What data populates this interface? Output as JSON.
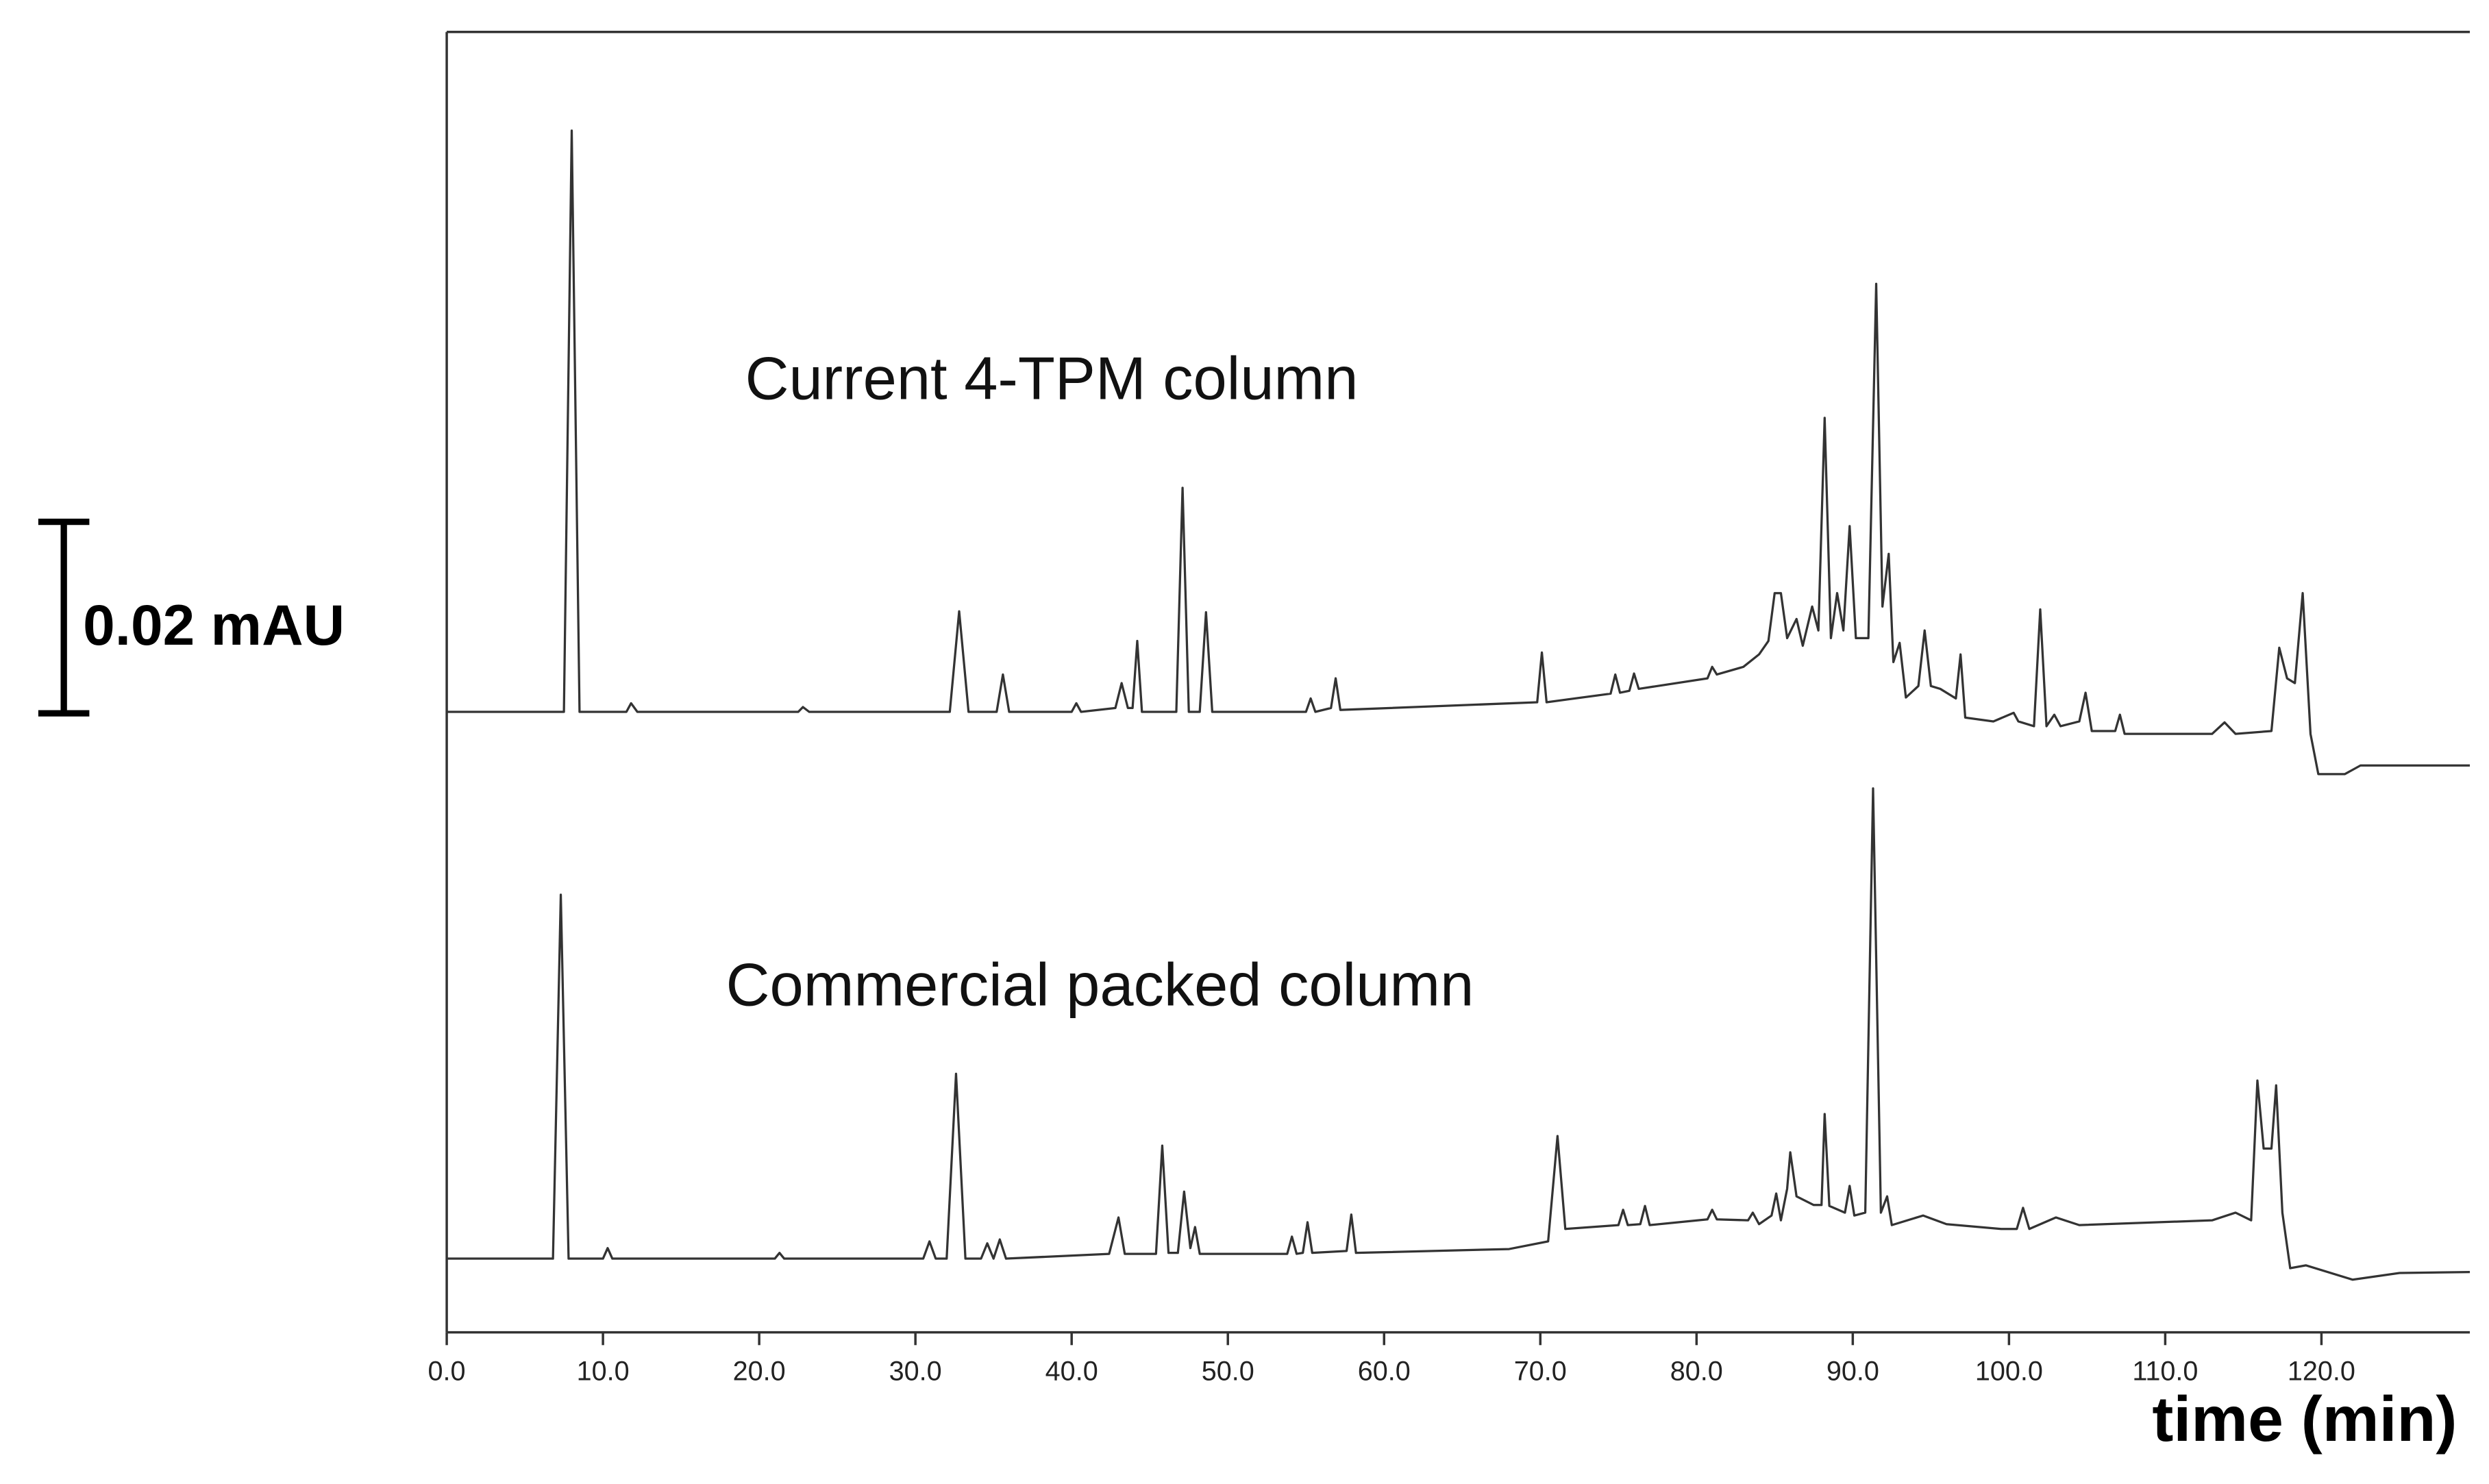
{
  "chart_data": {
    "type": "line",
    "xlabel": "time (min)",
    "xlim": [
      0,
      129.5
    ],
    "ylim": [
      0,
      0.1358
    ],
    "xticks": [
      {
        "value": 0,
        "label": "0.0"
      },
      {
        "value": 10,
        "label": "10.0"
      },
      {
        "value": 20,
        "label": "20.0"
      },
      {
        "value": 30,
        "label": "30.0"
      },
      {
        "value": 40,
        "label": "40.0"
      },
      {
        "value": 50,
        "label": "50.0"
      },
      {
        "value": 60,
        "label": "60.0"
      },
      {
        "value": 70,
        "label": "70.0"
      },
      {
        "value": 80,
        "label": "80.0"
      },
      {
        "value": 90,
        "label": "90.0"
      },
      {
        "value": 100,
        "label": "100.0"
      },
      {
        "value": 110,
        "label": "110.0"
      },
      {
        "value": 120,
        "label": "120.0"
      }
    ],
    "scale_bar": {
      "value": 0.02,
      "label": "0.02 mAU"
    },
    "series": [
      {
        "name": "Current 4-TPM column",
        "color": "#333333",
        "x": [
          0,
          7.5,
          8.0,
          8.5,
          11.5,
          11.8,
          12.2,
          22.5,
          22.8,
          23.2,
          32.2,
          32.8,
          33.4,
          35.2,
          35.6,
          36.0,
          40.0,
          40.3,
          40.6,
          42.8,
          43.2,
          43.6,
          43.9,
          44.2,
          44.5,
          46.7,
          47.1,
          47.5,
          48.2,
          48.6,
          49.0,
          55,
          55.3,
          55.6,
          56.6,
          56.9,
          57.2,
          69.8,
          70.1,
          70.4,
          74.5,
          74.8,
          75.1,
          75.7,
          76.0,
          76.3,
          80.7,
          81.0,
          81.3,
          83,
          84,
          84.6,
          85.0,
          85.4,
          85.8,
          86.4,
          86.8,
          87.4,
          87.8,
          88.2,
          88.6,
          89.0,
          89.4,
          89.8,
          90.2,
          91.0,
          91.5,
          91.9,
          92.3,
          92.6,
          93.0,
          93.4,
          94.2,
          94.6,
          95.0,
          95.6,
          96.6,
          96.9,
          97.2,
          99,
          100.3,
          100.6,
          101.6,
          102.0,
          102.4,
          102.9,
          103.3,
          104.5,
          104.9,
          105.3,
          106.8,
          107.1,
          107.4,
          113,
          113.8,
          114.5,
          116.8,
          117.3,
          117.8,
          118.3,
          118.8,
          119.3,
          119.8,
          121.5,
          122.5,
          129.5
        ],
        "values": [
          0.0648,
          0.0648,
          0.1255,
          0.0648,
          0.0648,
          0.0657,
          0.0648,
          0.0648,
          0.0653,
          0.0648,
          0.0648,
          0.0753,
          0.0648,
          0.0648,
          0.0687,
          0.0648,
          0.0648,
          0.0657,
          0.0648,
          0.0652,
          0.0678,
          0.0652,
          0.0652,
          0.0722,
          0.0648,
          0.0648,
          0.0882,
          0.0648,
          0.0648,
          0.0752,
          0.0648,
          0.0648,
          0.0662,
          0.0648,
          0.0652,
          0.0683,
          0.065,
          0.0658,
          0.071,
          0.0658,
          0.0667,
          0.0687,
          0.0668,
          0.067,
          0.0688,
          0.0672,
          0.0683,
          0.0695,
          0.0687,
          0.0695,
          0.0708,
          0.0722,
          0.0772,
          0.0772,
          0.0725,
          0.0745,
          0.0717,
          0.0758,
          0.0733,
          0.0955,
          0.0725,
          0.0772,
          0.0733,
          0.0842,
          0.0725,
          0.0725,
          0.1095,
          0.0758,
          0.0813,
          0.07,
          0.072,
          0.0663,
          0.0675,
          0.0733,
          0.0675,
          0.0672,
          0.0662,
          0.0708,
          0.0642,
          0.0638,
          0.0647,
          0.0638,
          0.0633,
          0.0755,
          0.0633,
          0.0645,
          0.0633,
          0.0638,
          0.0668,
          0.0628,
          0.0628,
          0.0645,
          0.0625,
          0.0625,
          0.0637,
          0.0625,
          0.0628,
          0.0715,
          0.0683,
          0.0678,
          0.0772,
          0.0625,
          0.0583,
          0.0583,
          0.0592,
          0.0592
        ]
      },
      {
        "name": "Commercial packed column",
        "color": "#333333",
        "x": [
          0,
          6.8,
          7.3,
          7.8,
          10.0,
          10.3,
          10.6,
          21,
          21.3,
          21.6,
          30.5,
          30.9,
          31.3,
          32.0,
          32.6,
          33.2,
          34.2,
          34.6,
          35.0,
          35.4,
          35.8,
          42.4,
          43.0,
          43.4,
          45.4,
          45.8,
          46.2,
          46.8,
          47.2,
          47.6,
          47.9,
          48.2,
          53.8,
          54.1,
          54.4,
          54.8,
          55.1,
          55.4,
          57.6,
          57.9,
          58.2,
          68,
          70.5,
          71.1,
          71.6,
          75.0,
          75.3,
          75.6,
          76.4,
          76.7,
          77.0,
          80.7,
          81.0,
          81.3,
          83.3,
          83.6,
          84.0,
          84.8,
          85.1,
          85.4,
          85.8,
          86.0,
          86.4,
          87.5,
          88.0,
          88.2,
          88.5,
          89.5,
          89.8,
          90.1,
          90.8,
          91.3,
          91.8,
          92.2,
          92.5,
          94.5,
          96,
          99.5,
          100.5,
          100.9,
          101.3,
          103,
          104.5,
          113,
          114.5,
          115.5,
          115.9,
          116.3,
          116.8,
          117.1,
          117.5,
          118.0,
          119,
          122,
          125,
          129.5
        ],
        "values": [
          0.0077,
          0.0077,
          0.0457,
          0.0077,
          0.0077,
          0.0088,
          0.0077,
          0.0077,
          0.0083,
          0.0077,
          0.0077,
          0.0095,
          0.0077,
          0.0077,
          0.027,
          0.0077,
          0.0077,
          0.0093,
          0.0077,
          0.0097,
          0.0077,
          0.0082,
          0.012,
          0.0082,
          0.0082,
          0.0195,
          0.0083,
          0.0083,
          0.0147,
          0.0088,
          0.011,
          0.0082,
          0.0082,
          0.01,
          0.0082,
          0.0083,
          0.0115,
          0.0083,
          0.0085,
          0.0123,
          0.0083,
          0.0087,
          0.0095,
          0.0205,
          0.0108,
          0.0112,
          0.0128,
          0.0112,
          0.0113,
          0.0132,
          0.0112,
          0.0118,
          0.0128,
          0.0118,
          0.0117,
          0.0125,
          0.0113,
          0.0122,
          0.0145,
          0.0117,
          0.015,
          0.0188,
          0.0142,
          0.0133,
          0.0133,
          0.0228,
          0.0132,
          0.0125,
          0.0153,
          0.0122,
          0.0125,
          0.0568,
          0.0125,
          0.0142,
          0.0112,
          0.0122,
          0.0113,
          0.0108,
          0.0108,
          0.013,
          0.0108,
          0.012,
          0.0112,
          0.0117,
          0.0125,
          0.0117,
          0.0263,
          0.0192,
          0.0192,
          0.0258,
          0.0125,
          0.0067,
          0.007,
          0.0055,
          0.0062,
          0.0063
        ]
      }
    ]
  }
}
